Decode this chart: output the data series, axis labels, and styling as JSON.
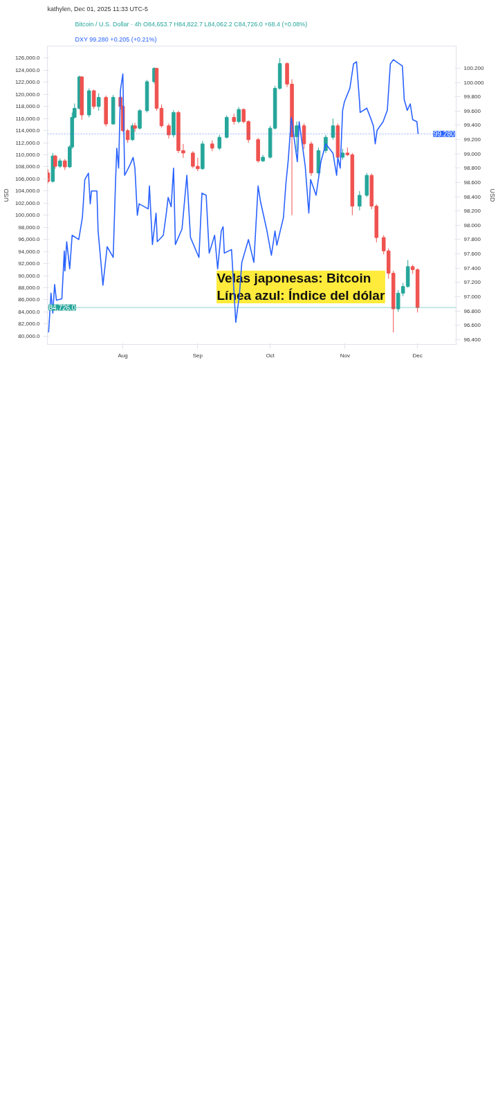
{
  "chart_data": {
    "type": "candlestick",
    "title": "Bitcoin / U.S. Dollar · 4h",
    "ylabel": "USD",
    "y2label": "USD",
    "annotations": [
      "kathylen, Dec 01, 2025 11:33 UTC-5",
      "O84,653.7 H84,822.7 L84,062.2 C84,726.0 +68.4 (+0.08%)",
      "99.280 +0.205 (+0.21%)",
      "Velas japonesas: Bitcoin",
      "Línea azul: Índice del dólar"
    ],
    "series": [
      {
        "colors": [
          "#ef5350",
          "#26a69a",
          "#ef5350",
          "#26a69a",
          "#ef5350",
          "#26a69a",
          "#26a69a",
          "#26a69a",
          "#26a69a",
          "#ef5350",
          "#26a69a",
          "#ef5350",
          "#26a69a",
          "#ef5350",
          "#26a69a",
          "#ef5350",
          "#ef5350",
          "#ef5350",
          "#26a69a",
          "#ef5350",
          "#26a69a",
          "#26a69a",
          "#26a69a",
          "#ef5350",
          "#ef5350",
          "#ef5350",
          "#26a69a",
          "#ef5350",
          "#ef5350",
          "#ef5350",
          "#ef5350",
          "#26a69a",
          "#ef5350",
          "#26a69a",
          "#26a69a",
          "#ef5350",
          "#26a69a",
          "#ef5350",
          "#ef5350",
          "#ef5350",
          "#26a69a",
          "#26a69a",
          "#26a69a",
          "#26a69a",
          "#ef5350",
          "#ef5350",
          "#26a69a",
          "#ef5350",
          "#ef5350",
          "#26a69a",
          "#26a69a",
          "#26a69a",
          "#ef5350",
          "#26a69a",
          "#ef5350",
          "#ef5350",
          "#26a69a",
          "#26a69a",
          "#ef5350",
          "#ef5350",
          "#ef5350",
          "#ef5350",
          "#ef5350",
          "#26a69a",
          "#26a69a",
          "#26a69a",
          "#ef5350",
          "#ef5350"
        ],
        "x": [
          "2025-07-01",
          "2025-07-03",
          "2025-07-04",
          "2025-07-06",
          "2025-07-08",
          "2025-07-10",
          "2025-07-11",
          "2025-07-12",
          "2025-07-14",
          "2025-07-15",
          "2025-07-18",
          "2025-07-20",
          "2025-07-22",
          "2025-07-25",
          "2025-07-28",
          "2025-07-31",
          "2025-08-01",
          "2025-08-03",
          "2025-08-05",
          "2025-08-06",
          "2025-08-08",
          "2025-08-11",
          "2025-08-14",
          "2025-08-15",
          "2025-08-17",
          "2025-08-20",
          "2025-08-22",
          "2025-08-24",
          "2025-08-26",
          "2025-08-30",
          "2025-09-01",
          "2025-09-03",
          "2025-09-07",
          "2025-09-10",
          "2025-09-13",
          "2025-09-16",
          "2025-09-18",
          "2025-09-20",
          "2025-09-22",
          "2025-09-26",
          "2025-09-28",
          "2025-10-01",
          "2025-10-03",
          "2025-10-05",
          "2025-10-08",
          "2025-10-10",
          "2025-10-12",
          "2025-10-15",
          "2025-10-18",
          "2025-10-21",
          "2025-10-24",
          "2025-10-27",
          "2025-10-29",
          "2025-10-31",
          "2025-11-02",
          "2025-11-04",
          "2025-11-07",
          "2025-11-10",
          "2025-11-12",
          "2025-11-14",
          "2025-11-17",
          "2025-11-19",
          "2025-11-21",
          "2025-11-23",
          "2025-11-25",
          "2025-11-27",
          "2025-11-29",
          "2025-12-01"
        ],
        "ohlc": [
          [
            107000,
            107600,
            105300,
            105600
          ],
          [
            105600,
            110300,
            105400,
            109800
          ],
          [
            109800,
            110000,
            107700,
            108100
          ],
          [
            108100,
            109400,
            107800,
            109000
          ],
          [
            109000,
            109300,
            107500,
            108000
          ],
          [
            108000,
            111600,
            107800,
            111300
          ],
          [
            111300,
            117000,
            111000,
            116200
          ],
          [
            116200,
            118500,
            116000,
            117700
          ],
          [
            117700,
            123100,
            117500,
            122900
          ],
          [
            122900,
            123000,
            115800,
            116600
          ],
          [
            116600,
            121000,
            116200,
            120600
          ],
          [
            120600,
            120800,
            117600,
            118000
          ],
          [
            118000,
            120200,
            117300,
            119500
          ],
          [
            119500,
            119800,
            114700,
            115100
          ],
          [
            115100,
            119900,
            115000,
            119500
          ],
          [
            119500,
            119800,
            117500,
            118000
          ],
          [
            118000,
            118200,
            113800,
            114000
          ],
          [
            114000,
            114300,
            112000,
            112500
          ],
          [
            112500,
            115200,
            112300,
            114800
          ],
          [
            114800,
            115300,
            113800,
            114400
          ],
          [
            114400,
            117600,
            114200,
            117300
          ],
          [
            117300,
            122400,
            117000,
            122100
          ],
          [
            122100,
            124500,
            121800,
            124300
          ],
          [
            124300,
            124400,
            117300,
            117700
          ],
          [
            117700,
            118300,
            114500,
            114800
          ],
          [
            114800,
            115200,
            112700,
            113300
          ],
          [
            113300,
            117400,
            112900,
            117000
          ],
          [
            117000,
            117300,
            110300,
            110700
          ],
          [
            110700,
            111800,
            109500,
            110300
          ],
          [
            110300,
            110600,
            107800,
            108100
          ],
          [
            108100,
            109500,
            107300,
            107700
          ],
          [
            107700,
            112300,
            107500,
            111800
          ],
          [
            111800,
            112400,
            110600,
            111100
          ],
          [
            111100,
            113300,
            110800,
            112900
          ],
          [
            112900,
            116500,
            112700,
            116200
          ],
          [
            116200,
            116800,
            115000,
            115500
          ],
          [
            115500,
            117900,
            115200,
            117500
          ],
          [
            117500,
            117700,
            115200,
            115500
          ],
          [
            115500,
            115700,
            112000,
            112500
          ],
          [
            112500,
            112800,
            108700,
            109000
          ],
          [
            109000,
            110000,
            108800,
            109600
          ],
          [
            109600,
            114800,
            109400,
            114400
          ],
          [
            114400,
            121400,
            114200,
            121000
          ],
          [
            121000,
            126000,
            120800,
            125100
          ],
          [
            125100,
            125300,
            121200,
            121700
          ],
          [
            121700,
            122500,
            100000,
            113000
          ],
          [
            113000,
            115500,
            110500,
            114800
          ],
          [
            114800,
            115200,
            111000,
            111800
          ],
          [
            111800,
            112200,
            106500,
            107000
          ],
          [
            107000,
            111200,
            106800,
            110700
          ],
          [
            110700,
            113300,
            110300,
            112900
          ],
          [
            112900,
            116000,
            112500,
            114800
          ],
          [
            114800,
            115200,
            109200,
            109600
          ],
          [
            109600,
            111000,
            109200,
            110300
          ],
          [
            110300,
            111200,
            109800,
            110000
          ],
          [
            110000,
            110300,
            100000,
            101500
          ],
          [
            101500,
            104000,
            100800,
            103300
          ],
          [
            103300,
            107000,
            103000,
            106600
          ],
          [
            106600,
            106900,
            101000,
            101500
          ],
          [
            101500,
            101800,
            95500,
            96300
          ],
          [
            96300,
            96700,
            93500,
            94100
          ],
          [
            94100,
            94500,
            89500,
            90400
          ],
          [
            90400,
            90800,
            80600,
            84500
          ],
          [
            84500,
            87600,
            84000,
            87100
          ],
          [
            87100,
            88800,
            86600,
            88200
          ],
          [
            88200,
            92600,
            88000,
            91500
          ],
          [
            91500,
            91800,
            90300,
            91000
          ],
          [
            91000,
            91200,
            83900,
            84726
          ]
        ]
      },
      {
        "type": "line",
        "name": "DXY",
        "axis": "y2",
        "color": "#2962ff",
        "x": [
          "2025-07-01T06:00",
          "2025-07-02T06:00",
          "2025-07-03T00:00",
          "2025-07-03T18:00",
          "2025-07-04T12:00",
          "2025-07-06T18:00",
          "2025-07-07T18:00",
          "2025-07-08T00:00",
          "2025-07-08T18:00",
          "2025-07-10T00:00",
          "2025-07-11T00:00",
          "2025-07-13T18:00",
          "2025-07-15T06:00",
          "2025-07-16T06:00",
          "2025-07-17T18:00",
          "2025-07-18T12:00",
          "2025-07-19T00:00",
          "2025-07-21T06:00",
          "2025-07-21T18:00",
          "2025-07-23T00:00",
          "2025-07-23T18:00",
          "2025-07-25T12:00",
          "2025-07-28T00:00",
          "2025-07-29T00:00",
          "2025-07-29T12:00",
          "2025-07-30T06:00",
          "2025-07-31T00:00",
          "2025-08-01T00:00",
          "2025-08-01T18:00",
          "2025-08-03T18:00",
          "2025-08-05T06:00",
          "2025-08-06T00:00",
          "2025-08-07T00:00",
          "2025-08-07T18:00",
          "2025-08-11T12:00",
          "2025-08-12T00:00",
          "2025-08-13T06:00",
          "2025-08-14T18:00",
          "2025-08-15T06:00",
          "2025-08-17T18:00",
          "2025-08-19T00:00",
          "2025-08-19T18:00",
          "2025-08-21T00:00",
          "2025-08-22T00:00",
          "2025-08-22T18:00",
          "2025-08-25T12:00",
          "2025-08-27T12:00",
          "2025-08-29T00:00",
          "2025-09-01T12:00",
          "2025-09-02T18:00",
          "2025-09-04T12:00",
          "2025-09-05T18:00",
          "2025-09-08T00:00",
          "2025-09-09T06:00",
          "2025-09-10T18:00",
          "2025-09-11T12:00",
          "2025-09-12T00:00",
          "2025-09-15T00:00",
          "2025-09-16T18:00",
          "2025-09-18T06:00",
          "2025-09-19T06:00",
          "2025-09-22T00:00",
          "2025-09-24T06:00",
          "2025-09-26T00:00",
          "2025-09-27T00:00",
          "2025-09-29T12:00",
          "2025-10-01T12:00",
          "2025-10-03T00:00",
          "2025-10-03T18:00",
          "2025-10-06T12:00",
          "2025-10-07T12:00",
          "2025-10-08T12:00",
          "2025-10-09T18:00",
          "2025-10-10T18:00",
          "2025-10-12T06:00",
          "2025-10-13T00:00",
          "2025-10-15T12:00",
          "2025-10-17T00:00",
          "2025-10-17T18:00",
          "2025-10-20T00:00",
          "2025-10-22T00:00",
          "2025-10-24T00:00",
          "2025-10-27T00:00",
          "2025-10-28T12:00",
          "2025-10-29T00:00",
          "2025-10-30T00:00",
          "2025-10-31T00:00",
          "2025-10-31T18:00",
          "2025-11-03T00:00",
          "2025-11-04T12:00",
          "2025-11-05T18:00",
          "2025-11-07T00:00",
          "2025-11-07T06:00",
          "2025-11-10T00:00",
          "2025-11-11T12:00",
          "2025-11-12T18:00",
          "2025-11-13T12:00",
          "2025-11-14T06:00",
          "2025-11-16T18:00",
          "2025-11-18T12:00",
          "2025-11-19T18:00",
          "2025-11-21T00:00",
          "2025-11-24T18:00",
          "2025-11-25T12:00",
          "2025-11-26T18:00",
          "2025-11-28T00:00",
          "2025-11-29T00:00",
          "2025-11-30T18:00",
          "2025-12-01T06:00"
        ],
        "values": [
          96.5,
          97.05,
          96.77,
          97.17,
          96.95,
          96.97,
          97.64,
          97.36,
          97.77,
          97.39,
          97.86,
          97.8,
          98.11,
          98.64,
          98.73,
          98.3,
          98.48,
          98.48,
          97.92,
          97.45,
          97.16,
          97.7,
          97.55,
          98.64,
          99.08,
          98.8,
          99.89,
          100.12,
          98.7,
          98.83,
          98.95,
          98.8,
          98.14,
          98.3,
          98.23,
          98.55,
          97.73,
          98.17,
          97.77,
          97.86,
          98.17,
          98.39,
          98.26,
          98.8,
          97.73,
          97.95,
          98.7,
          97.83,
          97.55,
          98.45,
          98.42,
          97.61,
          97.86,
          97.39,
          97.92,
          97.98,
          97.61,
          97.66,
          96.64,
          97.02,
          97.48,
          97.8,
          97.48,
          98.55,
          98.33,
          97.95,
          97.58,
          97.92,
          97.72,
          98.11,
          98.58,
          98.92,
          99.51,
          99.26,
          98.89,
          99.45,
          98.83,
          98.17,
          98.64,
          98.42,
          98.89,
          99.14,
          99.01,
          98.7,
          98.95,
          98.8,
          99.61,
          99.73,
          99.92,
          100.26,
          100.29,
          99.73,
          99.58,
          99.64,
          99.51,
          99.39,
          99.14,
          99.33,
          99.45,
          99.61,
          100.26,
          100.32,
          100.23,
          99.76,
          99.61,
          99.7,
          99.48,
          99.45,
          99.28
        ]
      }
    ],
    "xlim": [
      "2025-06-30T18:00",
      "2025-12-17T00:00"
    ],
    "xticks": [
      {
        "value": "2025-08-01",
        "label": "Aug"
      },
      {
        "value": "2025-09-01",
        "label": "Sep"
      },
      {
        "value": "2025-10-01",
        "label": "Oct"
      },
      {
        "value": "2025-11-01",
        "label": "Nov"
      },
      {
        "value": "2025-12-01",
        "label": "Dec"
      }
    ],
    "ylim": [
      78600,
      128000
    ],
    "yticks": [
      {
        "value": 80000,
        "label": "80,000.0"
      },
      {
        "value": 82000,
        "label": "82,000.0"
      },
      {
        "value": 84000,
        "label": "84,000.0"
      },
      {
        "value": 86000,
        "label": "86,000.0"
      },
      {
        "value": 88000,
        "label": "88,000.0"
      },
      {
        "value": 90000,
        "label": "90,000.0"
      },
      {
        "value": 92000,
        "label": "92,000.0"
      },
      {
        "value": 94000,
        "label": "94,000.0"
      },
      {
        "value": 96000,
        "label": "96,000.0"
      },
      {
        "value": 98000,
        "label": "98,000.0"
      },
      {
        "value": 100000,
        "label": "100,000.0"
      },
      {
        "value": 102000,
        "label": "102,000.0"
      },
      {
        "value": 104000,
        "label": "104,000.0"
      },
      {
        "value": 106000,
        "label": "106,000.0"
      },
      {
        "value": 108000,
        "label": "108,000.0"
      },
      {
        "value": 110000,
        "label": "110,000.0"
      },
      {
        "value": 112000,
        "label": "112,000.0"
      },
      {
        "value": 114000,
        "label": "114,000.0"
      },
      {
        "value": 116000,
        "label": "116,000.0"
      },
      {
        "value": 118000,
        "label": "118,000.0"
      },
      {
        "value": 120000,
        "label": "120,000.0"
      },
      {
        "value": 122000,
        "label": "122,000.0"
      },
      {
        "value": 124000,
        "label": "124,000.0"
      },
      {
        "value": 126000,
        "label": "126,000.0"
      }
    ],
    "y2lim": [
      96.33,
      100.51
    ],
    "y2ticks": [
      {
        "value": 96.4,
        "label": "96.400"
      },
      {
        "value": 96.6,
        "label": "96.600"
      },
      {
        "value": 96.8,
        "label": "96.800"
      },
      {
        "value": 97.0,
        "label": "97.000"
      },
      {
        "value": 97.2,
        "label": "97.200"
      },
      {
        "value": 97.4,
        "label": "97.400"
      },
      {
        "value": 97.6,
        "label": "97.600"
      },
      {
        "value": 97.8,
        "label": "97.800"
      },
      {
        "value": 98.0,
        "label": "98.000"
      },
      {
        "value": 98.2,
        "label": "98.200"
      },
      {
        "value": 98.4,
        "label": "98.400"
      },
      {
        "value": 98.6,
        "label": "98.600"
      },
      {
        "value": 98.8,
        "label": "98.800"
      },
      {
        "value": 99.0,
        "label": "99.000"
      },
      {
        "value": 99.2,
        "label": "99.200"
      },
      {
        "value": 99.4,
        "label": "99.400"
      },
      {
        "value": 99.6,
        "label": "99.600"
      },
      {
        "value": 99.8,
        "label": "99.800"
      },
      {
        "value": 100.0,
        "label": "100.000"
      },
      {
        "value": 100.2,
        "label": "100.200"
      }
    ],
    "ref_lines": [
      {
        "axis": "y",
        "value": 84726,
        "label": "84,726.0",
        "color": "#26a69a",
        "line_style": "solid"
      },
      {
        "axis": "y2",
        "value": 99.28,
        "label": "99.280",
        "color": "#2962ff",
        "line_style": "dotted"
      }
    ],
    "grid": false
  }
}
